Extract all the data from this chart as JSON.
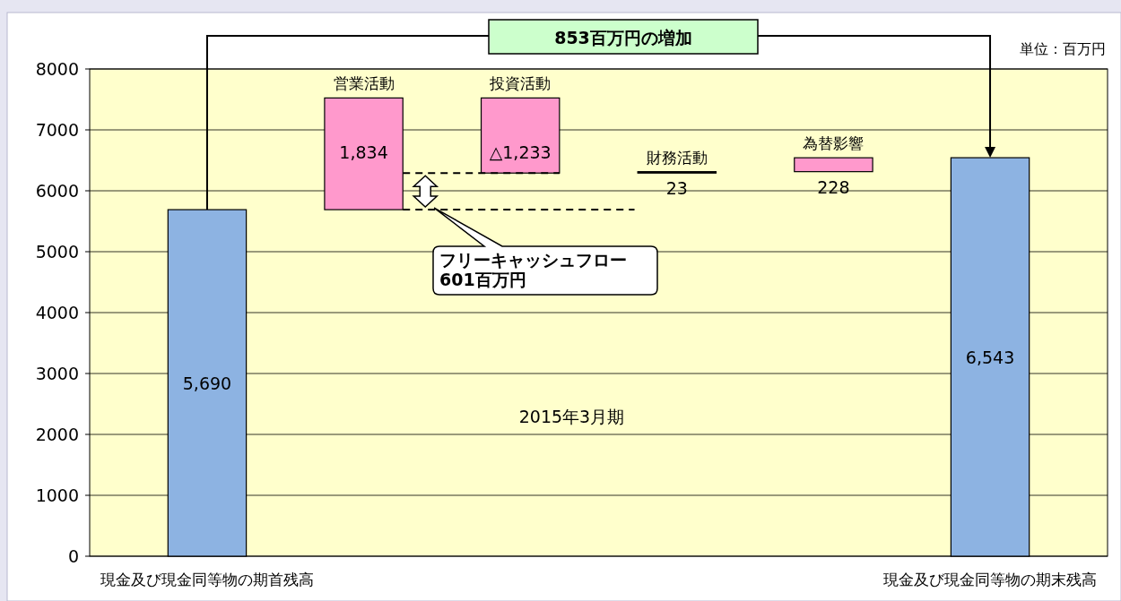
{
  "chart_data": {
    "type": "bar",
    "categories": [
      "現金及び現金同等物の期首残高",
      "営業活動",
      "投資活動",
      "財務活動",
      "為替影響",
      "現金及び現金同等物の期末残高"
    ],
    "values": [
      5690,
      1834,
      -1233,
      23,
      228,
      6543
    ],
    "base": [
      0,
      5690,
      7524,
      6291,
      6314,
      0
    ],
    "colors": [
      "#8db3e2",
      "#ff99cc",
      "#ff99cc",
      "#000000",
      "#ff99cc",
      "#8db3e2"
    ],
    "value_labels": [
      "5,690",
      "1,834",
      "△1,233",
      "23",
      "228",
      "6,543"
    ],
    "annotations": [
      "853百万円の増加",
      "単位：百万円",
      "2015年3月期",
      "フリーキャッシュフロー\n601百万円"
    ],
    "ylim": [
      0,
      8000
    ],
    "yticks": [
      0,
      1000,
      2000,
      3000,
      4000,
      5000,
      6000,
      7000,
      8000
    ],
    "grid": "y"
  }
}
